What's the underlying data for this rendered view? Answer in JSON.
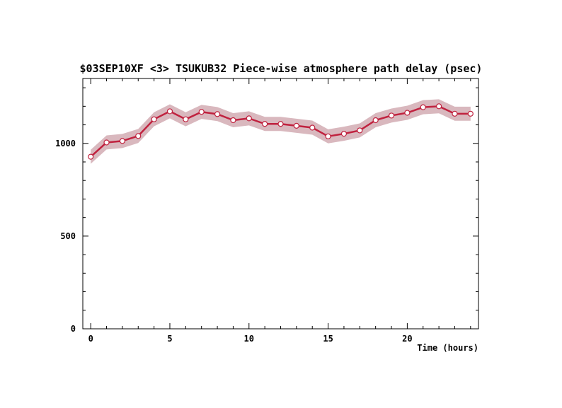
{
  "chart_data": {
    "type": "line",
    "title": "$03SEP10XF <3>  TSUKUB32  Piece-wise atmosphere path delay (psec)",
    "xlabel": "Time (hours)",
    "ylabel": "",
    "xlim": [
      -0.5,
      24.5
    ],
    "ylim": [
      0,
      1350
    ],
    "x_ticks": [
      0,
      5,
      10,
      15,
      20
    ],
    "x_tick_labels": [
      "0",
      "5",
      "10",
      "15",
      "20"
    ],
    "y_ticks": [
      0,
      500,
      1000
    ],
    "y_tick_labels": [
      "0",
      "500",
      "1000"
    ],
    "grid": false,
    "series": [
      {
        "color": "#c0223f",
        "band_color": "#d9b8be",
        "uncertainty": 38,
        "x": [
          0,
          1,
          2,
          3,
          4,
          5,
          6,
          7,
          8,
          9,
          10,
          11,
          12,
          13,
          14,
          15,
          16,
          17,
          18,
          19,
          20,
          21,
          22,
          23,
          24
        ],
        "values": [
          928,
          1005,
          1013,
          1040,
          1130,
          1173,
          1130,
          1170,
          1158,
          1125,
          1135,
          1105,
          1105,
          1095,
          1085,
          1038,
          1052,
          1070,
          1125,
          1150,
          1165,
          1195,
          1200,
          1160,
          1160
        ]
      }
    ]
  }
}
